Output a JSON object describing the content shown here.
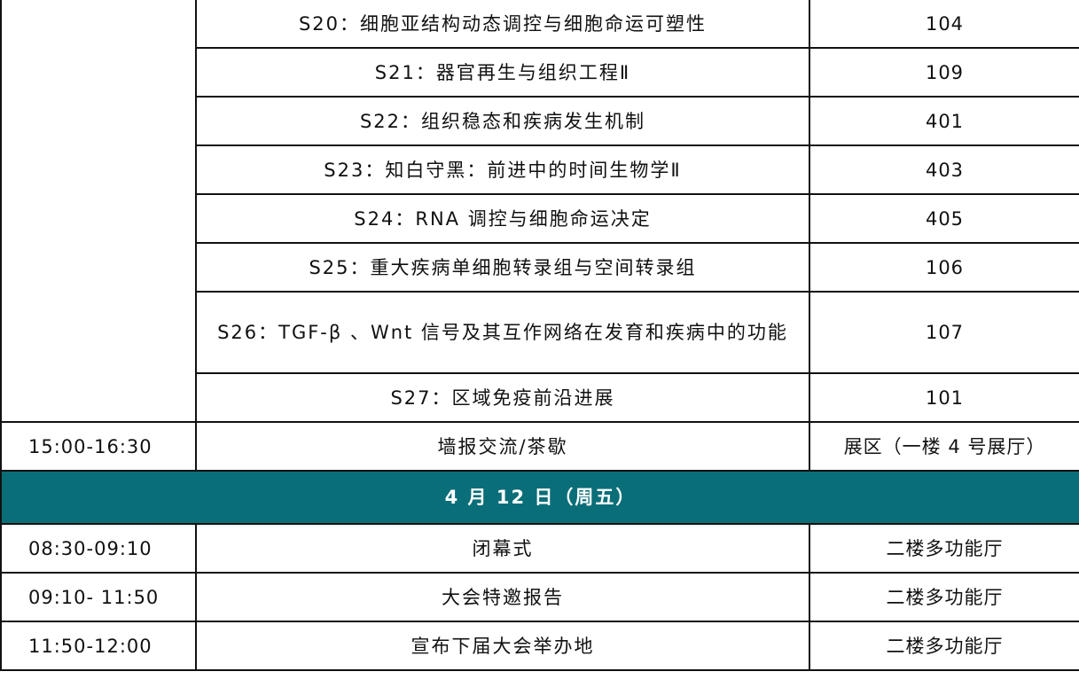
{
  "sessions": [
    {
      "title": "S20：细胞亚结构动态调控与细胞命运可塑性",
      "room": "104"
    },
    {
      "title": "S21：器官再生与组织工程Ⅱ",
      "room": "109"
    },
    {
      "title": "S22：组织稳态和疾病发生机制",
      "room": "401"
    },
    {
      "title": "S23：知白守黑：前进中的时间生物学Ⅱ",
      "room": "403"
    },
    {
      "title": "S24：RNA 调控与细胞命运决定",
      "room": "405"
    },
    {
      "title": "S25：重大疾病单细胞转录组与空间转录组",
      "room": "106"
    },
    {
      "title": "S26：TGF-β 、Wnt 信号及其互作网络在发育和疾病中的功能",
      "room": "107"
    },
    {
      "title": "S27：区域免疫前沿进展",
      "room": "101"
    }
  ],
  "poster": {
    "time": "15:00-16:30",
    "event": "墙报交流/茶歇",
    "location": "展区（一楼 4 号展厅）"
  },
  "day_header": "4 月 12 日（周五）",
  "day_header_color": "#0a6e78",
  "schedule": [
    {
      "time": "08:30-09:10",
      "event": "闭幕式",
      "location": "二楼多功能厅"
    },
    {
      "time": "09:10- 11:50",
      "event": "大会特邀报告",
      "location": "二楼多功能厅"
    },
    {
      "time": "11:50-12:00",
      "event": "宣布下届大会举办地",
      "location": "二楼多功能厅"
    }
  ]
}
